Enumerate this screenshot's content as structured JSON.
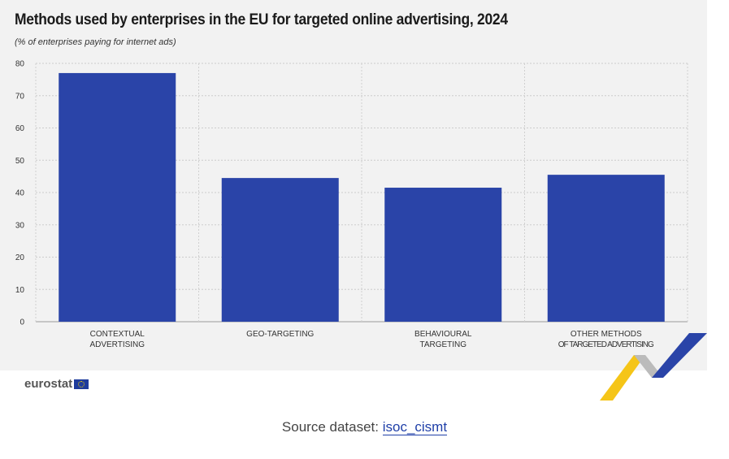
{
  "chart_data": {
    "type": "bar",
    "title": "Methods used by enterprises in the EU for targeted online advertising, 2024",
    "subtitle": "(% of enterprises paying for internet ads)",
    "categories": [
      [
        "CONTEXTUAL",
        "ADVERTISING"
      ],
      [
        "GEO-TARGETING"
      ],
      [
        "BEHAVIOURAL",
        "TARGETING"
      ],
      [
        "OTHER METHODS",
        "OF TARGETED ADVERTISING"
      ]
    ],
    "values": [
      77,
      44.5,
      41.5,
      45.5
    ],
    "ylim": [
      0,
      80
    ],
    "yticks": [
      "0",
      "10",
      "20",
      "30",
      "40",
      "50",
      "60",
      "70",
      "80"
    ],
    "grid": true,
    "bar_color": "#2a44a8"
  },
  "branding": {
    "logo_text": "eurostat"
  },
  "footer": {
    "source_prefix": "Source dataset: ",
    "dataset_link": "isoc_cismt"
  }
}
